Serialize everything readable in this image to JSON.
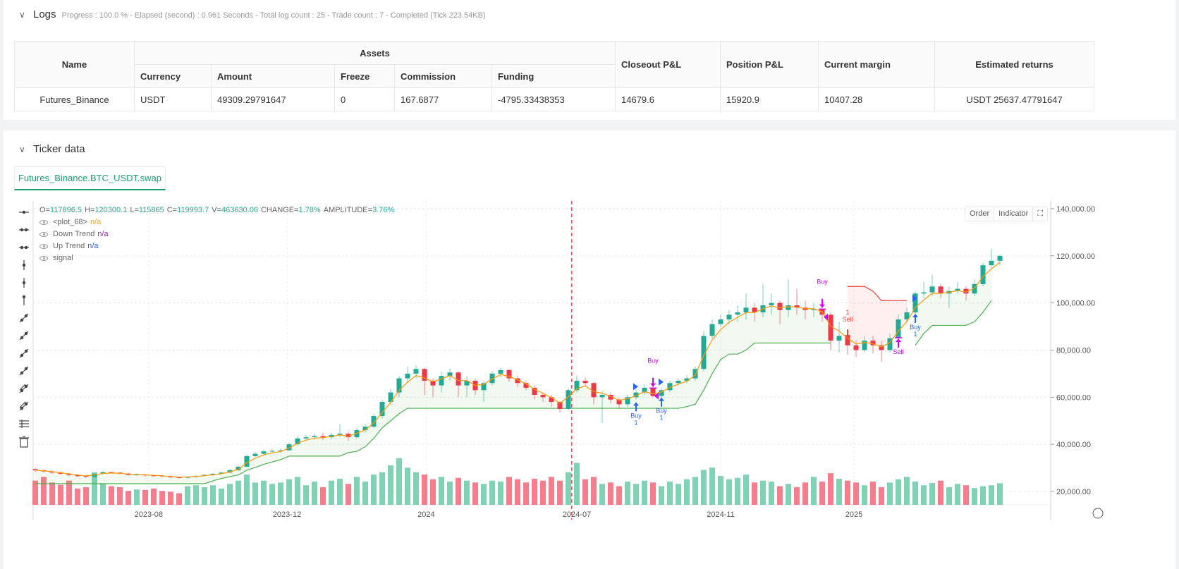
{
  "logs": {
    "title": "Logs",
    "summary": "Progress : 100.0 % - Elapsed (second) :  0.961  Seconds - Total log count : 25 - Trade count : 7 - Completed (Tick 223.54KB)"
  },
  "table": {
    "name_header": "Name",
    "assets_header": "Assets",
    "asset_columns": [
      "Currency",
      "Amount",
      "Freeze",
      "Commission",
      "Funding"
    ],
    "other_columns": [
      "Closeout P&L",
      "Position P&L",
      "Current margin",
      "Estimated returns"
    ],
    "row": {
      "name": "Futures_Binance",
      "currency": "USDT",
      "amount": "49309.29791647",
      "freeze": "0",
      "commission": "167.6877",
      "funding": "-4795.33438353",
      "closeout": "14679.6",
      "position": "15920.9",
      "margin": "10407.28",
      "returns": "USDT 25637.47791647"
    }
  },
  "ticker": {
    "title": "Ticker data",
    "tab": "Futures_Binance.BTC_USDT.swap"
  },
  "chart_header": {
    "o_label": "O=",
    "o": "117896.5",
    "h_label": "H=",
    "h": "120300.1",
    "l_label": "L=",
    "l": "115865",
    "c_label": "C=",
    "c": "119993.7",
    "v_label": "V=",
    "v": "463630.06",
    "change_label": "CHANGE=",
    "change": "1.78%",
    "amp_label": "AMPLITUDE=",
    "amp": "3.76%"
  },
  "legend": [
    {
      "name": "<plot_68>",
      "value": "n/a",
      "color": "#f5a623"
    },
    {
      "name": "Down Trend",
      "value": "n/a",
      "color": "#9c27b0"
    },
    {
      "name": "Up Trend",
      "value": "n/a",
      "color": "#2962ff"
    },
    {
      "name": "signal",
      "value": "",
      "color": "#999"
    }
  ],
  "buttons": {
    "order": "Order",
    "indicator": "Indicator"
  },
  "colors": {
    "up": "#22ab94",
    "down": "#f23645",
    "up_volume": "#7fd3b4",
    "down_volume": "#f77c8c",
    "ma": "#ff9800",
    "uptrend": "#4caf50",
    "downtrend": "#f44336",
    "buy": "#2962ff",
    "signal": "#d500f9"
  },
  "toolbar_icons": [
    "cursor-icon",
    "horizontal-line-icon",
    "horizontal-ray-icon",
    "vertical-line-icon",
    "cross-line-icon",
    "vertical-segment-icon",
    "trend-line-icon",
    "ray-icon",
    "extended-line-icon",
    "price-range-icon",
    "parallel-channel-icon",
    "fib-channel-icon",
    "grid-lines-icon",
    "trash-icon"
  ],
  "chart_data": {
    "type": "candlestick",
    "y_ticks": [
      "140,000.00",
      "120,000.00",
      "100,000.00",
      "80,000.00",
      "60,000.00",
      "40,000.00",
      "20,000.00"
    ],
    "y_tick_values": [
      140000,
      120000,
      100000,
      80000,
      60000,
      40000,
      20000
    ],
    "x_ticks": [
      {
        "label": "2023-08",
        "index": 13.4
      },
      {
        "label": "2023-12",
        "index": 29.75
      },
      {
        "label": "2024",
        "index": 46.2
      },
      {
        "label": "2024-07",
        "index": 64
      },
      {
        "label": "2024-11",
        "index": 81
      },
      {
        "label": "2025",
        "index": 96.75
      }
    ],
    "marker_line_index": 63.4,
    "open": [
      29500,
      29000,
      28500,
      28000,
      27500,
      27000,
      26500,
      26200,
      27500,
      28200,
      28000,
      27600,
      27000,
      27200,
      26800,
      26700,
      26500,
      26000,
      25800,
      26200,
      26600,
      27000,
      27500,
      28000,
      29000,
      30500,
      35000,
      36000,
      37000,
      37200,
      37500,
      40000,
      42500,
      43000,
      43500,
      43000,
      44000,
      44500,
      43000,
      46000,
      47500,
      52000,
      58000,
      62000,
      68000,
      70000,
      72000,
      67000,
      65000,
      69000,
      70500,
      65000,
      67000,
      63000,
      66000,
      70000,
      71500,
      68000,
      66000,
      64000,
      61000,
      60000,
      58000,
      55000,
      63000,
      67000,
      66000,
      60000,
      61000,
      59000,
      57000,
      60000,
      62000,
      64000,
      60500,
      63000,
      66000,
      67000,
      68000,
      72000,
      86000,
      91000,
      93000,
      95000,
      96000,
      98000,
      96000,
      99000,
      100000,
      97000,
      99000,
      98000,
      97000,
      97500,
      95000,
      84000,
      86000,
      82000,
      80000,
      84000,
      82000,
      80000,
      85000,
      93000,
      96000,
      104000,
      104500,
      107000,
      104000,
      105000,
      106000,
      104000,
      108000,
      116000,
      117896.5
    ],
    "high": [
      30000,
      29300,
      28900,
      28400,
      27900,
      27300,
      26900,
      28000,
      28600,
      28500,
      28300,
      27900,
      27600,
      27500,
      27100,
      27000,
      26800,
      26300,
      26600,
      27000,
      27400,
      27900,
      28400,
      29500,
      31000,
      35500,
      36800,
      37800,
      38000,
      38200,
      40800,
      43500,
      44000,
      44500,
      44800,
      45000,
      48500,
      45500,
      47000,
      48500,
      53000,
      59000,
      63500,
      69000,
      73000,
      73500,
      72500,
      68000,
      71000,
      72000,
      71000,
      69000,
      68000,
      67000,
      71000,
      72500,
      72000,
      69000,
      67000,
      65000,
      62000,
      61000,
      58500,
      64000,
      69000,
      68500,
      66500,
      62500,
      62000,
      60000,
      61000,
      63500,
      65500,
      65500,
      64000,
      67000,
      68000,
      69500,
      73000,
      88000,
      93000,
      95000,
      97000,
      99000,
      104000,
      100000,
      108000,
      104000,
      101000,
      110000,
      106000,
      101000,
      100000,
      100000,
      96000,
      92000,
      88000,
      84000,
      86000,
      86000,
      84000,
      87000,
      95000,
      98000,
      105000,
      109000,
      112000,
      108000,
      107000,
      109000,
      107000,
      110000,
      117000,
      123000,
      120300.1
    ],
    "low": [
      28300,
      28000,
      27500,
      27000,
      26500,
      26000,
      25800,
      26000,
      27200,
      27600,
      27200,
      26700,
      26700,
      26400,
      26300,
      26100,
      25600,
      25400,
      25500,
      25900,
      26300,
      26700,
      27200,
      27700,
      28700,
      30200,
      34500,
      35500,
      36400,
      36500,
      37000,
      39500,
      41500,
      42000,
      41800,
      42000,
      43000,
      41500,
      42500,
      45000,
      47000,
      51000,
      56500,
      60000,
      66000,
      68000,
      61000,
      60000,
      62000,
      67000,
      60000,
      60000,
      61000,
      58000,
      65000,
      68500,
      66500,
      64500,
      63000,
      59000,
      58000,
      56000,
      53500,
      54500,
      62000,
      64500,
      57000,
      49000,
      57500,
      55000,
      56000,
      59000,
      61000,
      60000,
      57000,
      62000,
      65000,
      66000,
      67000,
      71000,
      85000,
      89500,
      91000,
      92000,
      93000,
      92000,
      94000,
      95000,
      91000,
      94000,
      95000,
      93000,
      94000,
      92000,
      80000,
      79000,
      78000,
      77000,
      79000,
      78500,
      75000,
      79000,
      84000,
      92000,
      95000,
      102000,
      103000,
      102000,
      98000,
      104000,
      101000,
      103000,
      107000,
      115000,
      115865
    ],
    "close": [
      29000,
      28500,
      28000,
      27500,
      27000,
      26500,
      26200,
      27500,
      28200,
      28000,
      27600,
      27000,
      27200,
      26800,
      26700,
      26500,
      26000,
      25800,
      26200,
      26600,
      27000,
      27500,
      28000,
      29000,
      30500,
      35000,
      36000,
      37000,
      37200,
      37500,
      40000,
      42500,
      43000,
      43500,
      43000,
      44000,
      44500,
      43000,
      46000,
      47500,
      52000,
      58000,
      62000,
      68000,
      70000,
      72000,
      67000,
      65000,
      69000,
      70500,
      65000,
      67000,
      63000,
      66000,
      70000,
      71500,
      68000,
      66000,
      64000,
      61000,
      60000,
      58000,
      55000,
      63000,
      67000,
      66000,
      60000,
      61000,
      59000,
      57000,
      60000,
      62000,
      64000,
      60500,
      63000,
      66000,
      67000,
      68000,
      72000,
      86000,
      91000,
      93000,
      95000,
      96000,
      98000,
      96000,
      99000,
      100000,
      97000,
      99000,
      98000,
      97000,
      97500,
      95000,
      84000,
      86000,
      82000,
      80000,
      84000,
      82000,
      80000,
      85000,
      93000,
      96000,
      104000,
      104500,
      107000,
      104000,
      105000,
      106000,
      104000,
      108000,
      116000,
      117896.5,
      119993.7
    ],
    "volume": [
      520000,
      600000,
      480000,
      430000,
      520000,
      350000,
      380000,
      700000,
      450000,
      400000,
      380000,
      300000,
      330000,
      320000,
      350000,
      300000,
      280000,
      250000,
      400000,
      420000,
      380000,
      420000,
      350000,
      450000,
      520000,
      650000,
      480000,
      520000,
      450000,
      480000,
      550000,
      600000,
      420000,
      500000,
      380000,
      520000,
      560000,
      450000,
      600000,
      500000,
      650000,
      700000,
      850000,
      1000000,
      800000,
      700000,
      650000,
      550000,
      600000,
      500000,
      580000,
      520000,
      480000,
      450000,
      520000,
      500000,
      600000,
      550000,
      480000,
      560000,
      520000,
      600000,
      520000,
      700000,
      900000,
      550000,
      600000,
      450000,
      480000,
      400000,
      500000,
      450000,
      520000,
      480000,
      400000,
      500000,
      450000,
      550000,
      600000,
      750000,
      800000,
      620000,
      550000,
      580000,
      650000,
      480000,
      520000,
      500000,
      400000,
      450000,
      380000,
      480000,
      600000,
      500000,
      680000,
      560000,
      520000,
      480000,
      420000,
      500000,
      380000,
      480000,
      550000,
      600000,
      500000,
      420000,
      470000,
      520000,
      380000,
      450000,
      420000,
      360000,
      400000,
      420000,
      463630.06
    ],
    "up_trend": [
      23300,
      23300,
      23300,
      23300,
      23300,
      23300,
      23300,
      23300,
      23300,
      23300,
      23300,
      23300,
      23300,
      23300,
      23300,
      23300,
      23300,
      23300,
      23300,
      23300,
      23300,
      24500,
      25500,
      26300,
      27000,
      29000,
      30200,
      31500,
      32500,
      33500,
      35000,
      35000,
      35000,
      35000,
      35000,
      35000,
      35000,
      36500,
      37000,
      39000,
      42500,
      47000,
      50000,
      53000,
      55300,
      55300,
      55300,
      55300,
      55300,
      55300,
      55300,
      55300,
      55300,
      55300,
      55300,
      55300,
      55300,
      55300,
      55300,
      55300,
      55300,
      55300,
      55300,
      55300,
      55300,
      55300,
      55300,
      55300,
      55300,
      55300,
      55300,
      55300,
      55300,
      55300,
      55300,
      55300,
      55300,
      56000,
      57000,
      63000,
      70000,
      76000,
      78300,
      78300,
      80000,
      83000,
      83000,
      83000,
      83000,
      83000,
      83000,
      83000,
      83000,
      83000,
      83000,
      null,
      null,
      null,
      null,
      null,
      null,
      null,
      null,
      null,
      82000,
      87000,
      90500,
      90500,
      90500,
      90500,
      90500,
      92000,
      96000,
      101000,
      null
    ],
    "down_trend": [
      null,
      null,
      null,
      null,
      null,
      null,
      null,
      null,
      null,
      null,
      null,
      null,
      null,
      null,
      null,
      null,
      null,
      null,
      null,
      null,
      null,
      null,
      null,
      null,
      null,
      null,
      null,
      null,
      null,
      null,
      null,
      null,
      null,
      null,
      null,
      null,
      null,
      null,
      null,
      null,
      null,
      null,
      null,
      null,
      null,
      null,
      null,
      null,
      null,
      null,
      null,
      null,
      null,
      null,
      null,
      null,
      null,
      null,
      null,
      null,
      null,
      null,
      null,
      null,
      null,
      null,
      null,
      null,
      null,
      null,
      null,
      null,
      null,
      null,
      null,
      null,
      null,
      null,
      null,
      null,
      null,
      null,
      null,
      null,
      null,
      null,
      null,
      null,
      null,
      null,
      null,
      null,
      null,
      null,
      null,
      null,
      107000,
      107000,
      107000,
      105000,
      101000,
      101000,
      101000,
      101000,
      null,
      null,
      null,
      null,
      null,
      null,
      null,
      null,
      null,
      null,
      null
    ],
    "signals": [
      {
        "index": 71,
        "kind": "entry-long",
        "label_top": "Buy",
        "label_bottom": "1",
        "price": 55500,
        "below": true
      },
      {
        "index": 73,
        "kind": "close-short",
        "label_top": "Buy",
        "label_bottom": "",
        "price": 68000,
        "below": false
      },
      {
        "index": 74,
        "kind": "entry-long",
        "label_top": "Buy",
        "label_bottom": "1",
        "price": 57500,
        "below": true
      },
      {
        "index": 93,
        "kind": "close-short",
        "label_top": "Buy",
        "label_bottom": "",
        "price": 101500,
        "below": false
      },
      {
        "index": 96,
        "kind": "entry-short",
        "label_top": "1",
        "label_bottom": "Sell",
        "price": 88500,
        "below": false
      },
      {
        "index": 102,
        "kind": "close-long",
        "label_top": "Sell",
        "label_bottom": "",
        "price": 82500,
        "below": true
      },
      {
        "index": 104,
        "kind": "entry-long",
        "label_top": "Buy",
        "label_bottom": "1",
        "price": 93000,
        "below": true
      }
    ]
  }
}
